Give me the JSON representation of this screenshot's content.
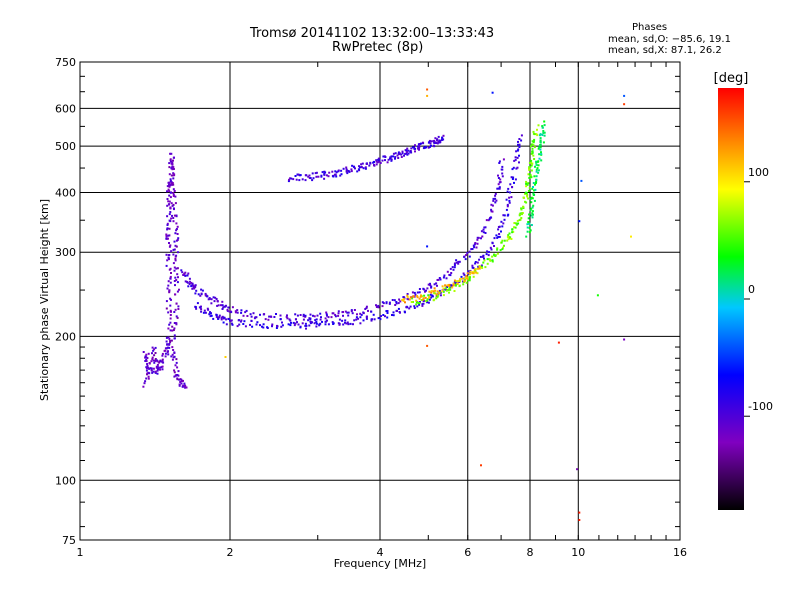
{
  "chart_data": {
    "type": "scatter",
    "title": "Tromsø 20141102 13:32:00–13:33:43",
    "subtitle": "RwPretec (8p)",
    "xlabel": "Frequency [MHz]",
    "ylabel": "Stationary phase Virtual Height [km]",
    "x_scale": "log2",
    "y_scale": "log",
    "xlim": [
      1,
      16
    ],
    "ylim": [
      75,
      750
    ],
    "x_ticks": [
      1,
      2,
      4,
      6,
      8,
      10,
      16
    ],
    "y_ticks": [
      75,
      100,
      200,
      300,
      400,
      500,
      600,
      750
    ],
    "grid": true,
    "phase_info": {
      "heading": "Phases",
      "line_o": "mean, sd,O: −85.6, 19.1",
      "line_x": "mean, sd,X: 87.1, 26.2"
    },
    "colorbar": {
      "label": "[deg]",
      "range": [
        -180,
        180
      ],
      "ticks": [
        100,
        0,
        -100
      ]
    },
    "traces": [
      {
        "name": "",
        "phase": -110,
        "points": [
          [
            1.35,
            160
          ],
          [
            1.35,
            185
          ],
          [
            1.38,
            165
          ],
          [
            1.4,
            190
          ],
          [
            1.42,
            170
          ],
          [
            1.45,
            175
          ],
          [
            1.48,
            185
          ],
          [
            1.5,
            200
          ],
          [
            1.5,
            240
          ],
          [
            1.5,
            280
          ],
          [
            1.5,
            320
          ],
          [
            1.5,
            360
          ],
          [
            1.5,
            400
          ],
          [
            1.52,
            430
          ],
          [
            1.52,
            480
          ],
          [
            1.52,
            440
          ],
          [
            1.53,
            390
          ],
          [
            1.55,
            340
          ],
          [
            1.55,
            300
          ],
          [
            1.56,
            260
          ],
          [
            1.55,
            220
          ],
          [
            1.52,
            190
          ],
          [
            1.55,
            170
          ],
          [
            1.58,
            160
          ],
          [
            1.62,
            158
          ]
        ]
      },
      {
        "name": "",
        "phase": -100,
        "points": [
          [
            1.6,
            275
          ],
          [
            1.65,
            262
          ],
          [
            1.7,
            252
          ],
          [
            1.8,
            242
          ],
          [
            1.9,
            235
          ],
          [
            2.0,
            228
          ],
          [
            2.2,
            222
          ],
          [
            2.5,
            220
          ],
          [
            2.8,
            220
          ],
          [
            3.0,
            221
          ],
          [
            3.3,
            223
          ],
          [
            3.6,
            226
          ],
          [
            4.0,
            232
          ],
          [
            4.4,
            240
          ],
          [
            4.8,
            250
          ],
          [
            5.2,
            262
          ],
          [
            5.6,
            280
          ],
          [
            6.0,
            300
          ],
          [
            6.4,
            330
          ],
          [
            6.7,
            370
          ],
          [
            6.9,
            420
          ],
          [
            7.0,
            470
          ]
        ]
      },
      {
        "name": "",
        "phase": -90,
        "points": [
          [
            1.7,
            235
          ],
          [
            1.8,
            225
          ],
          [
            1.9,
            218
          ],
          [
            2.0,
            215
          ],
          [
            2.2,
            213
          ],
          [
            2.5,
            212
          ],
          [
            2.8,
            212
          ],
          [
            3.0,
            213
          ],
          [
            3.3,
            214
          ],
          [
            3.6,
            217
          ],
          [
            4.0,
            222
          ],
          [
            4.4,
            228
          ],
          [
            4.8,
            236
          ],
          [
            5.2,
            246
          ],
          [
            5.6,
            258
          ],
          [
            6.0,
            272
          ],
          [
            6.4,
            292
          ],
          [
            6.8,
            320
          ],
          [
            7.1,
            360
          ],
          [
            7.3,
            410
          ],
          [
            7.5,
            470
          ],
          [
            7.6,
            530
          ]
        ]
      },
      {
        "name": "",
        "phase": -95,
        "points": [
          [
            2.6,
            430
          ],
          [
            2.8,
            432
          ],
          [
            3.0,
            435
          ],
          [
            3.2,
            440
          ],
          [
            3.4,
            445
          ],
          [
            3.6,
            452
          ],
          [
            3.8,
            460
          ],
          [
            4.0,
            468
          ],
          [
            4.2,
            475
          ],
          [
            4.4,
            483
          ],
          [
            4.6,
            492
          ],
          [
            4.8,
            500
          ],
          [
            5.0,
            508
          ],
          [
            5.2,
            515
          ],
          [
            5.3,
            520
          ]
        ]
      },
      {
        "name": "",
        "phase": 60,
        "points": [
          [
            4.6,
            237
          ],
          [
            5.0,
            242
          ],
          [
            5.4,
            250
          ],
          [
            5.8,
            260
          ],
          [
            6.2,
            272
          ],
          [
            6.6,
            290
          ],
          [
            7.0,
            310
          ],
          [
            7.3,
            330
          ],
          [
            7.6,
            355
          ],
          [
            7.8,
            385
          ],
          [
            7.9,
            420
          ],
          [
            8.0,
            460
          ],
          [
            8.1,
            500
          ],
          [
            8.2,
            550
          ]
        ]
      },
      {
        "name": "",
        "phase": 120,
        "points": [
          [
            4.4,
            240
          ],
          [
            4.8,
            243
          ],
          [
            5.2,
            250
          ],
          [
            5.6,
            258
          ],
          [
            6.0,
            268
          ],
          [
            6.4,
            280
          ]
        ]
      },
      {
        "name": "",
        "phase": 20,
        "points": [
          [
            7.9,
            330
          ],
          [
            8.0,
            360
          ],
          [
            8.1,
            400
          ],
          [
            8.2,
            440
          ],
          [
            8.3,
            480
          ],
          [
            8.4,
            520
          ],
          [
            8.5,
            560
          ]
        ]
      }
    ],
    "outliers": [
      {
        "x": 4.95,
        "y": 660,
        "phase": 150
      },
      {
        "x": 4.95,
        "y": 640,
        "phase": 120
      },
      {
        "x": 4.95,
        "y": 192,
        "phase": 150
      },
      {
        "x": 4.95,
        "y": 310,
        "phase": -60
      },
      {
        "x": 6.35,
        "y": 108,
        "phase": 160
      },
      {
        "x": 6.7,
        "y": 650,
        "phase": -60
      },
      {
        "x": 9.1,
        "y": 195,
        "phase": 170
      },
      {
        "x": 9.9,
        "y": 106,
        "phase": -130
      },
      {
        "x": 10.0,
        "y": 86,
        "phase": 170
      },
      {
        "x": 10.0,
        "y": 83,
        "phase": 170
      },
      {
        "x": 10.1,
        "y": 425,
        "phase": -40
      },
      {
        "x": 10.0,
        "y": 350,
        "phase": -60
      },
      {
        "x": 10.9,
        "y": 245,
        "phase": 40
      },
      {
        "x": 12.3,
        "y": 640,
        "phase": -40
      },
      {
        "x": 12.3,
        "y": 615,
        "phase": 160
      },
      {
        "x": 12.3,
        "y": 198,
        "phase": -120
      },
      {
        "x": 12.7,
        "y": 325,
        "phase": 100
      },
      {
        "x": 1.95,
        "y": 182,
        "phase": 110
      }
    ]
  }
}
